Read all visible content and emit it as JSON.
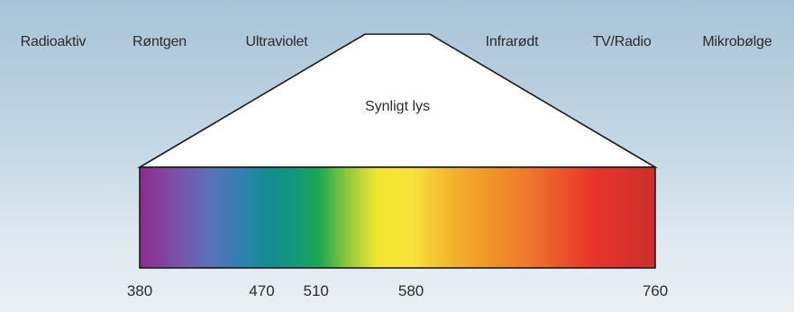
{
  "bands_left": [
    {
      "key": "radioactive",
      "label": "Radioaktiv"
    },
    {
      "key": "xray",
      "label": "Røntgen"
    },
    {
      "key": "ultraviolet",
      "label": "Ultraviolet"
    }
  ],
  "bands_right": [
    {
      "key": "infrared",
      "label": "Infrarødt"
    },
    {
      "key": "tvradio",
      "label": "TV/Radio"
    },
    {
      "key": "microwave",
      "label": "Mikrobølge"
    }
  ],
  "visible_label": "Synligt lys",
  "spectrum": {
    "min_nm": 380,
    "max_nm": 760,
    "tick_labels": [
      "380",
      "470",
      "510",
      "580",
      "760"
    ],
    "tick_values": [
      380,
      470,
      510,
      580,
      760
    ],
    "color_stops": [
      {
        "nm": 380,
        "color": "#8e2a8f"
      },
      {
        "nm": 405,
        "color": "#7a4fa5"
      },
      {
        "nm": 430,
        "color": "#5e6fb8"
      },
      {
        "nm": 455,
        "color": "#2f82b0"
      },
      {
        "nm": 475,
        "color": "#138c8f"
      },
      {
        "nm": 495,
        "color": "#12997a"
      },
      {
        "nm": 512,
        "color": "#1aa652"
      },
      {
        "nm": 535,
        "color": "#9acb3c"
      },
      {
        "nm": 555,
        "color": "#f1e631"
      },
      {
        "nm": 580,
        "color": "#f8e23b"
      },
      {
        "nm": 615,
        "color": "#f3ad2a"
      },
      {
        "nm": 665,
        "color": "#ee7a2b"
      },
      {
        "nm": 715,
        "color": "#e8332a"
      },
      {
        "nm": 760,
        "color": "#cc2f2d"
      }
    ]
  }
}
